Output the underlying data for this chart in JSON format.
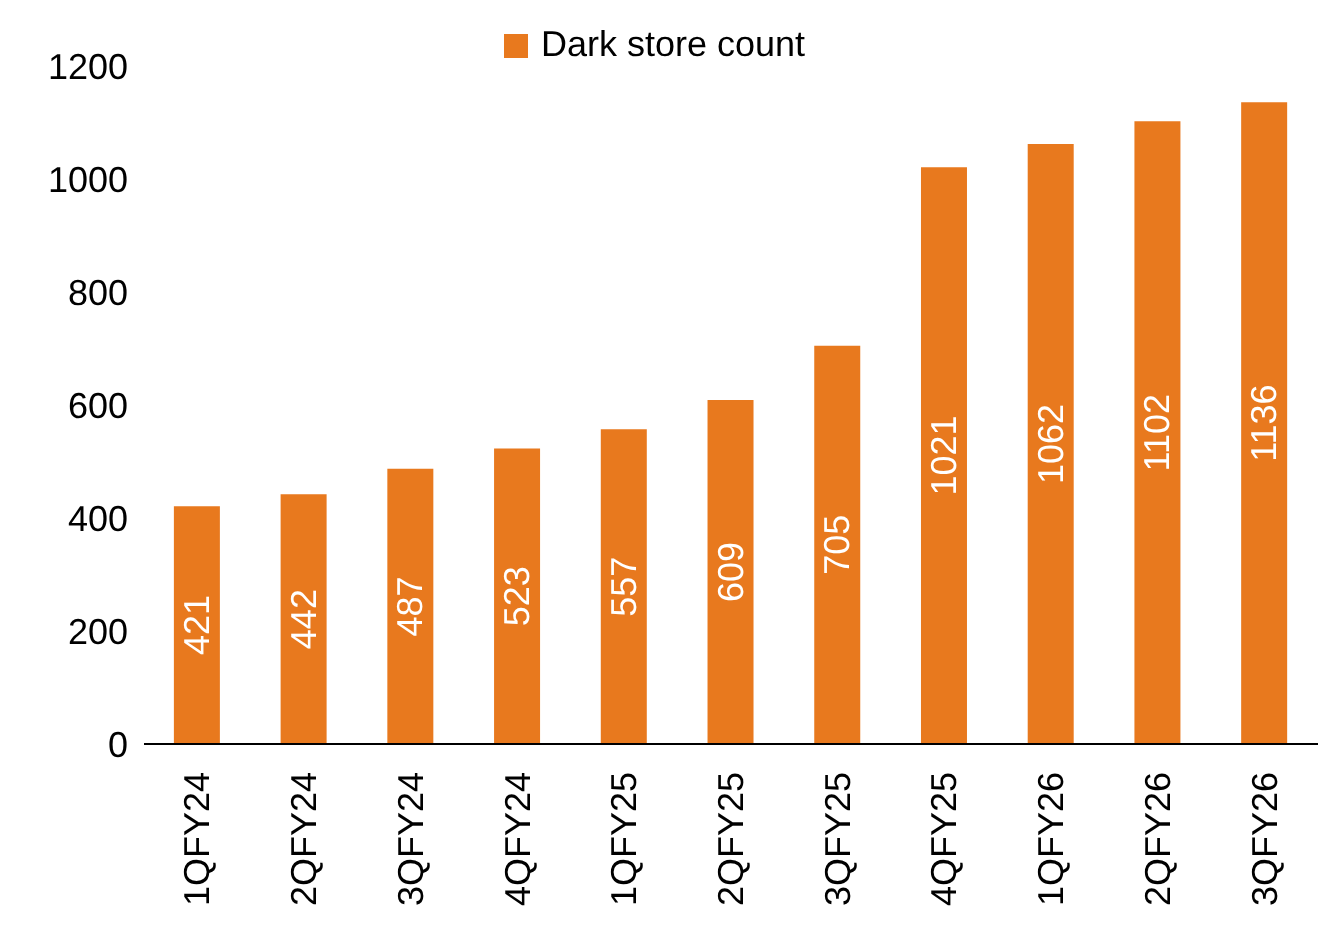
{
  "chart_data": {
    "type": "bar",
    "categories": [
      "1QFY24",
      "2QFY24",
      "3QFY24",
      "4QFY24",
      "1QFY25",
      "2QFY25",
      "3QFY25",
      "4QFY25",
      "1QFY26",
      "2QFY26",
      "3QFY26"
    ],
    "series": [
      {
        "name": "Dark store count",
        "color": "#e8791e",
        "values": [
          421,
          442,
          487,
          523,
          557,
          609,
          705,
          1021,
          1062,
          1102,
          1136
        ]
      }
    ],
    "ylim": [
      0,
      1200
    ],
    "yticks": [
      0,
      200,
      400,
      600,
      800,
      1000,
      1200
    ],
    "grid": false,
    "legend": "top",
    "data_labels": true
  }
}
